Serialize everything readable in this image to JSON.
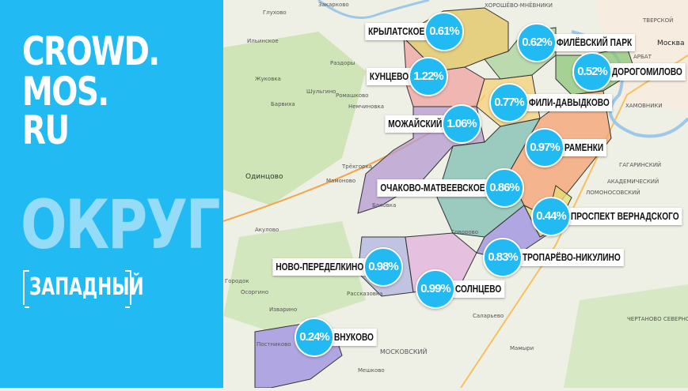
{
  "brand": {
    "line1": "CROWD.",
    "line2": "MOS.",
    "line3": "RU"
  },
  "heading": "ОКРУГ",
  "district_name": "ЗАПАДНЫЙ",
  "colors": {
    "panel": "#22baf2",
    "heading": "#94dcf8",
    "bubble": "#22baf2"
  },
  "districts": [
    {
      "name": "КРЫЛАТСКОЕ",
      "value": "0.61%",
      "color": "#e0c65e"
    },
    {
      "name": "ФИЛЁВСКИЙ ПАРК",
      "value": "0.62%",
      "color": "#a9d39a"
    },
    {
      "name": "ДОРОГОМИЛОВО",
      "value": "0.52%",
      "color": "#8cc77a"
    },
    {
      "name": "КУНЦЕВО",
      "value": "1.22%",
      "color": "#f0a3a0"
    },
    {
      "name": "ФИЛИ-ДАВЫДКОВО",
      "value": "0.77%",
      "color": "#f6d27a"
    },
    {
      "name": "МОЖАЙСКИЙ",
      "value": "1.06%",
      "color": "#b69ad0"
    },
    {
      "name": "РАМЕНКИ",
      "value": "0.97%",
      "color": "#f5a070"
    },
    {
      "name": "ОЧАКОВО-МАТВЕЕВСКОЕ",
      "value": "0.86%",
      "color": "#7fbfb0"
    },
    {
      "name": "ПРОСПЕКТ ВЕРНАДСКОГО",
      "value": "0.44%",
      "color": "#e6e070"
    },
    {
      "name": "ТРОПАРЁВО-НИКУЛИНО",
      "value": "0.83%",
      "color": "#9a8ee0"
    },
    {
      "name": "НОВО-ПЕРЕДЕЛКИНО",
      "value": "0.98%",
      "color": "#b0b6e0"
    },
    {
      "name": "СОЛНЦЕВО",
      "value": "0.99%",
      "color": "#e3b0dc"
    },
    {
      "name": "ВНУКОВО",
      "value": "0.24%",
      "color": "#9a8ee0"
    }
  ],
  "places": [
    "Закарково",
    "Глухово",
    "Ильинское",
    "Жуковка",
    "Барвиха",
    "Шульгино",
    "Раздоры",
    "Ромашково",
    "Немчиновка",
    "Одинцово",
    "Мамоново",
    "Трёхгорка",
    "Баковка",
    "Акулово",
    "Городок",
    "Осоргино",
    "Изварино",
    "Постниково",
    "Рассказовка",
    "Говорово",
    "Саларьево",
    "Мамыри",
    "ХОРОШЁВО-МНЁВНИКИ",
    "ХАМОВНИКИ",
    "АРБАТ",
    "ГАГАРИНСКИЙ",
    "АКАДЕМИЧЕСКИЙ",
    "ЛОМОНОСОВСКИЙ",
    "Москва",
    "МОСКОВСКИЙ",
    "Мешково",
    "ТВЕРСКОЙ",
    "ЧЕРТАНОВО СЕВЕРНОЕ"
  ]
}
